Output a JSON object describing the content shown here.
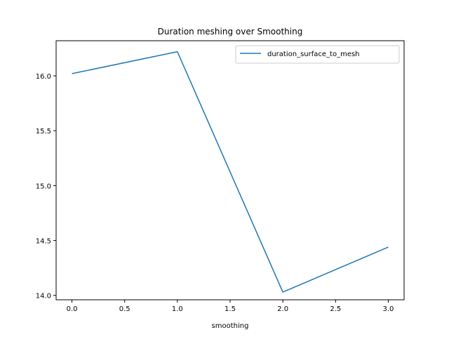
{
  "chart_data": {
    "type": "line",
    "title": "Duration meshing over Smoothing",
    "xlabel": "smoothing",
    "ylabel": "",
    "x": [
      0,
      1,
      2,
      3
    ],
    "series": [
      {
        "name": "duration_surface_to_mesh",
        "color": "#1f77b4",
        "values": [
          16.02,
          16.22,
          14.03,
          14.44
        ]
      }
    ],
    "xlim": [
      -0.15,
      3.15
    ],
    "ylim": [
      13.96,
      16.32
    ],
    "xticks": [
      0.0,
      0.5,
      1.0,
      1.5,
      2.0,
      2.5,
      3.0
    ],
    "xtick_labels": [
      "0.0",
      "0.5",
      "1.0",
      "1.5",
      "2.0",
      "2.5",
      "3.0"
    ],
    "yticks": [
      14.0,
      14.5,
      15.0,
      15.5,
      16.0
    ],
    "ytick_labels": [
      "14.0",
      "14.5",
      "15.0",
      "15.5",
      "16.0"
    ],
    "grid": false,
    "legend_position": "upper right"
  }
}
